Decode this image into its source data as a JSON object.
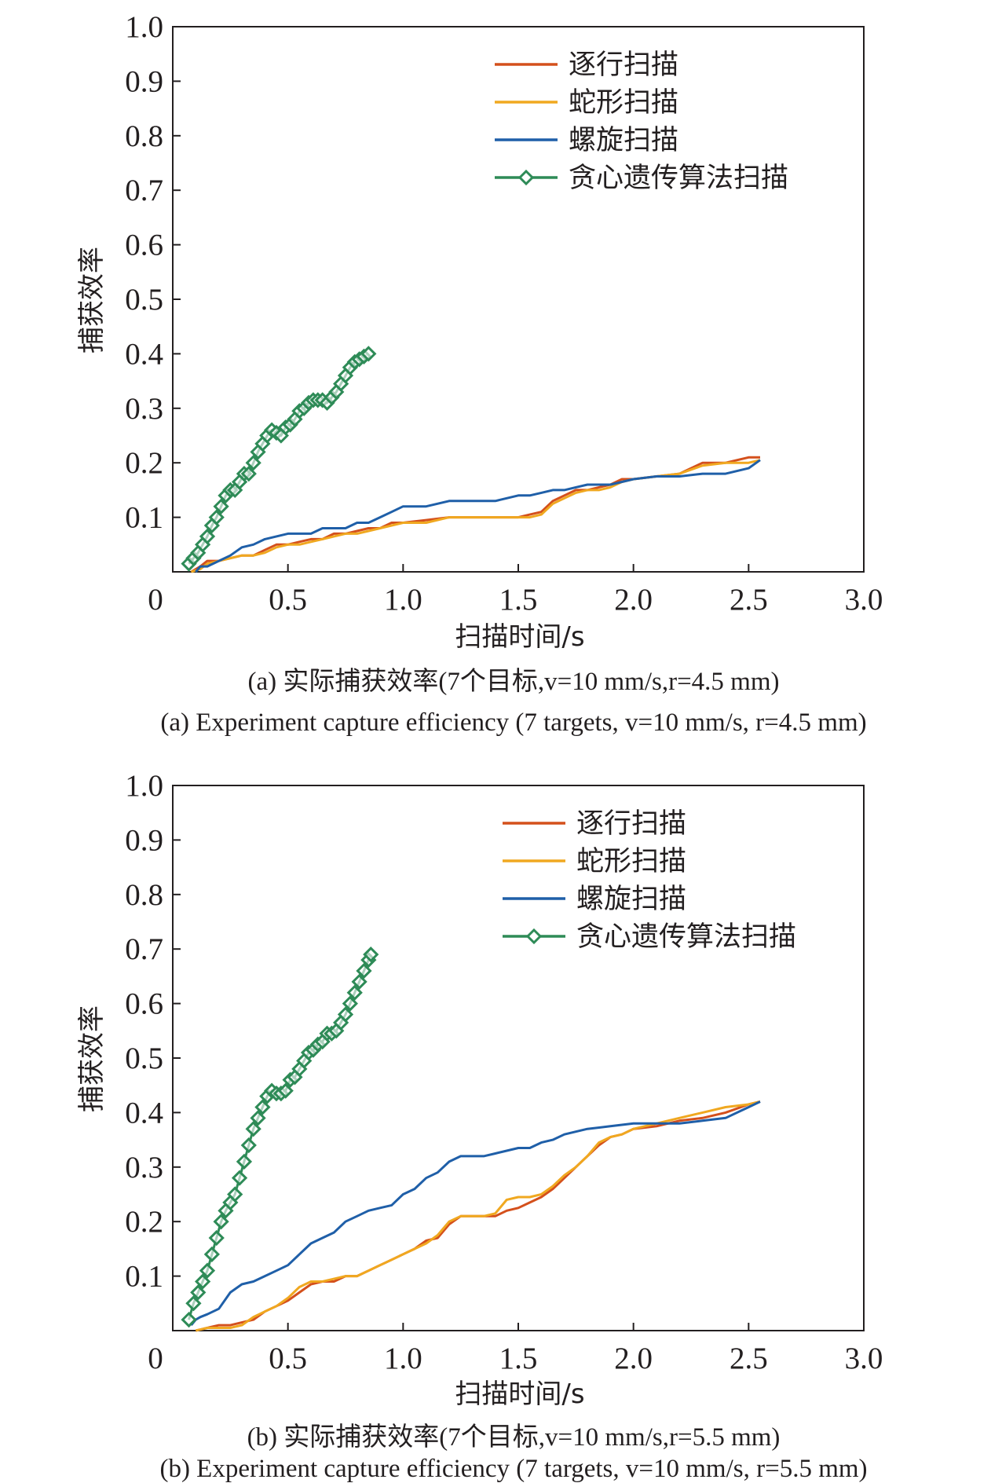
{
  "charts": [
    {
      "caption_cn": "(a) 实际捕获效率(7个目标,v=10 mm/s,r=4.5 mm)",
      "caption_en": "(a) Experiment capture efficiency (7 targets, v=10 mm/s, r=4.5 mm)"
    },
    {
      "caption_cn": "(b) 实际捕获效率(7个目标,v=10 mm/s,r=5.5 mm)",
      "caption_en": "(b) Experiment capture efficiency (7 targets, v=10 mm/s, r=5.5 mm)"
    }
  ],
  "chart_data": [
    {
      "type": "line",
      "xlabel": "扫描时间/s",
      "ylabel": "捕获效率",
      "xlim": [
        0,
        3.0
      ],
      "ylim": [
        0,
        1.0
      ],
      "xticks": [
        "0",
        "0.5",
        "1.0",
        "1.5",
        "2.0",
        "2.5",
        "3.0"
      ],
      "yticks": [
        "0.1",
        "0.2",
        "0.3",
        "0.4",
        "0.5",
        "0.6",
        "0.7",
        "0.8",
        "0.9",
        "1.0"
      ],
      "grid": false,
      "legend_position": "top-right",
      "series": [
        {
          "name": "逐行扫描",
          "color": "#d4501c",
          "marker": "none",
          "x": [
            0.08,
            0.12,
            0.15,
            0.2,
            0.3,
            0.35,
            0.4,
            0.45,
            0.5,
            0.55,
            0.6,
            0.65,
            0.7,
            0.75,
            0.8,
            0.85,
            0.9,
            0.95,
            1.0,
            1.1,
            1.2,
            1.3,
            1.4,
            1.5,
            1.55,
            1.6,
            1.65,
            1.7,
            1.75,
            1.8,
            1.85,
            1.9,
            1.95,
            2.0,
            2.1,
            2.2,
            2.3,
            2.4,
            2.5,
            2.55
          ],
          "y": [
            0.0,
            0.01,
            0.02,
            0.02,
            0.03,
            0.03,
            0.04,
            0.05,
            0.05,
            0.055,
            0.06,
            0.06,
            0.07,
            0.07,
            0.075,
            0.08,
            0.08,
            0.09,
            0.09,
            0.095,
            0.1,
            0.1,
            0.1,
            0.1,
            0.105,
            0.11,
            0.13,
            0.14,
            0.15,
            0.15,
            0.155,
            0.16,
            0.17,
            0.17,
            0.175,
            0.18,
            0.2,
            0.2,
            0.21,
            0.21
          ]
        },
        {
          "name": "蛇形扫描",
          "color": "#f0a820",
          "marker": "none",
          "x": [
            0.08,
            0.12,
            0.15,
            0.2,
            0.3,
            0.35,
            0.4,
            0.45,
            0.5,
            0.55,
            0.6,
            0.65,
            0.7,
            0.75,
            0.8,
            0.85,
            0.9,
            0.95,
            1.0,
            1.1,
            1.2,
            1.3,
            1.4,
            1.5,
            1.55,
            1.6,
            1.65,
            1.7,
            1.75,
            1.8,
            1.85,
            1.9,
            1.95,
            2.0,
            2.1,
            2.2,
            2.3,
            2.4,
            2.5,
            2.55
          ],
          "y": [
            0.0,
            0.005,
            0.015,
            0.02,
            0.03,
            0.03,
            0.035,
            0.045,
            0.05,
            0.05,
            0.055,
            0.06,
            0.065,
            0.07,
            0.07,
            0.075,
            0.08,
            0.085,
            0.09,
            0.09,
            0.1,
            0.1,
            0.1,
            0.1,
            0.1,
            0.105,
            0.125,
            0.135,
            0.145,
            0.15,
            0.15,
            0.155,
            0.165,
            0.17,
            0.175,
            0.18,
            0.195,
            0.2,
            0.2,
            0.205
          ]
        },
        {
          "name": "螺旋扫描",
          "color": "#1f5fa8",
          "marker": "none",
          "x": [
            0.1,
            0.12,
            0.15,
            0.2,
            0.25,
            0.3,
            0.35,
            0.4,
            0.45,
            0.5,
            0.55,
            0.6,
            0.65,
            0.7,
            0.75,
            0.8,
            0.85,
            0.9,
            0.95,
            1.0,
            1.1,
            1.2,
            1.3,
            1.4,
            1.45,
            1.5,
            1.55,
            1.6,
            1.65,
            1.7,
            1.75,
            1.8,
            1.85,
            1.9,
            1.95,
            2.0,
            2.1,
            2.2,
            2.3,
            2.4,
            2.5,
            2.55
          ],
          "y": [
            0.0,
            0.01,
            0.01,
            0.02,
            0.03,
            0.045,
            0.05,
            0.06,
            0.065,
            0.07,
            0.07,
            0.07,
            0.08,
            0.08,
            0.08,
            0.09,
            0.09,
            0.1,
            0.11,
            0.12,
            0.12,
            0.13,
            0.13,
            0.13,
            0.135,
            0.14,
            0.14,
            0.145,
            0.15,
            0.15,
            0.155,
            0.16,
            0.16,
            0.16,
            0.165,
            0.17,
            0.175,
            0.175,
            0.18,
            0.18,
            0.19,
            0.205
          ]
        },
        {
          "name": "贪心遗传算法扫描",
          "color": "#2e8b57",
          "marker": "diamond",
          "x": [
            0.07,
            0.09,
            0.11,
            0.13,
            0.15,
            0.17,
            0.19,
            0.21,
            0.23,
            0.25,
            0.27,
            0.29,
            0.31,
            0.33,
            0.35,
            0.37,
            0.39,
            0.41,
            0.43,
            0.45,
            0.47,
            0.49,
            0.51,
            0.53,
            0.55,
            0.57,
            0.59,
            0.61,
            0.63,
            0.65,
            0.67,
            0.69,
            0.71,
            0.73,
            0.75,
            0.77,
            0.79,
            0.81,
            0.83,
            0.85
          ],
          "y": [
            0.015,
            0.025,
            0.035,
            0.05,
            0.065,
            0.085,
            0.1,
            0.12,
            0.14,
            0.15,
            0.15,
            0.165,
            0.18,
            0.18,
            0.2,
            0.22,
            0.235,
            0.25,
            0.26,
            0.255,
            0.25,
            0.265,
            0.27,
            0.28,
            0.295,
            0.3,
            0.31,
            0.315,
            0.315,
            0.315,
            0.31,
            0.32,
            0.33,
            0.345,
            0.36,
            0.375,
            0.385,
            0.39,
            0.395,
            0.4
          ]
        }
      ]
    },
    {
      "type": "line",
      "xlabel": "扫描时间/s",
      "ylabel": "捕获效率",
      "xlim": [
        0,
        3.0
      ],
      "ylim": [
        0,
        1.0
      ],
      "xticks": [
        "0",
        "0.5",
        "1.0",
        "1.5",
        "2.0",
        "2.5",
        "3.0"
      ],
      "yticks": [
        "0.1",
        "0.2",
        "0.3",
        "0.4",
        "0.5",
        "0.6",
        "0.7",
        "0.8",
        "0.9",
        "1.0"
      ],
      "grid": false,
      "legend_position": "top-right",
      "series": [
        {
          "name": "逐行扫描",
          "color": "#d4501c",
          "marker": "none",
          "x": [
            0.1,
            0.15,
            0.2,
            0.25,
            0.3,
            0.35,
            0.4,
            0.45,
            0.5,
            0.55,
            0.6,
            0.65,
            0.7,
            0.75,
            0.8,
            0.85,
            0.9,
            0.95,
            1.0,
            1.05,
            1.1,
            1.15,
            1.2,
            1.25,
            1.3,
            1.35,
            1.4,
            1.45,
            1.5,
            1.55,
            1.6,
            1.65,
            1.7,
            1.75,
            1.8,
            1.85,
            1.9,
            1.95,
            2.0,
            2.1,
            2.2,
            2.3,
            2.4,
            2.5,
            2.55
          ],
          "y": [
            0.0,
            0.005,
            0.01,
            0.01,
            0.015,
            0.02,
            0.035,
            0.045,
            0.055,
            0.07,
            0.085,
            0.09,
            0.09,
            0.1,
            0.1,
            0.11,
            0.12,
            0.13,
            0.14,
            0.15,
            0.165,
            0.17,
            0.195,
            0.21,
            0.21,
            0.21,
            0.21,
            0.22,
            0.225,
            0.235,
            0.245,
            0.26,
            0.28,
            0.3,
            0.32,
            0.34,
            0.355,
            0.36,
            0.37,
            0.375,
            0.385,
            0.39,
            0.4,
            0.415,
            0.42
          ]
        },
        {
          "name": "蛇形扫描",
          "color": "#f0a820",
          "marker": "none",
          "x": [
            0.1,
            0.15,
            0.2,
            0.25,
            0.3,
            0.35,
            0.4,
            0.45,
            0.5,
            0.55,
            0.6,
            0.65,
            0.7,
            0.75,
            0.8,
            0.85,
            0.9,
            0.95,
            1.0,
            1.05,
            1.1,
            1.15,
            1.2,
            1.25,
            1.3,
            1.35,
            1.4,
            1.45,
            1.5,
            1.55,
            1.6,
            1.65,
            1.7,
            1.75,
            1.8,
            1.85,
            1.9,
            1.95,
            2.0,
            2.1,
            2.2,
            2.3,
            2.4,
            2.5,
            2.55
          ],
          "y": [
            0.0,
            0.005,
            0.005,
            0.005,
            0.01,
            0.025,
            0.035,
            0.045,
            0.06,
            0.08,
            0.09,
            0.09,
            0.095,
            0.1,
            0.1,
            0.11,
            0.12,
            0.13,
            0.14,
            0.15,
            0.16,
            0.175,
            0.2,
            0.21,
            0.21,
            0.21,
            0.215,
            0.24,
            0.245,
            0.245,
            0.25,
            0.265,
            0.285,
            0.3,
            0.32,
            0.345,
            0.355,
            0.36,
            0.37,
            0.38,
            0.39,
            0.4,
            0.41,
            0.415,
            0.42
          ]
        },
        {
          "name": "螺旋扫描",
          "color": "#1f5fa8",
          "marker": "none",
          "x": [
            0.08,
            0.1,
            0.12,
            0.15,
            0.2,
            0.25,
            0.3,
            0.35,
            0.4,
            0.45,
            0.5,
            0.55,
            0.6,
            0.65,
            0.7,
            0.75,
            0.8,
            0.85,
            0.9,
            0.95,
            1.0,
            1.05,
            1.1,
            1.15,
            1.2,
            1.25,
            1.3,
            1.35,
            1.4,
            1.45,
            1.5,
            1.55,
            1.6,
            1.65,
            1.7,
            1.75,
            1.8,
            1.9,
            2.0,
            2.1,
            2.2,
            2.3,
            2.4,
            2.5,
            2.55
          ],
          "y": [
            0.01,
            0.02,
            0.025,
            0.03,
            0.04,
            0.07,
            0.085,
            0.09,
            0.1,
            0.11,
            0.12,
            0.14,
            0.16,
            0.17,
            0.18,
            0.2,
            0.21,
            0.22,
            0.225,
            0.23,
            0.25,
            0.26,
            0.28,
            0.29,
            0.31,
            0.32,
            0.32,
            0.32,
            0.325,
            0.33,
            0.335,
            0.335,
            0.345,
            0.35,
            0.36,
            0.365,
            0.37,
            0.375,
            0.38,
            0.38,
            0.38,
            0.385,
            0.39,
            0.41,
            0.42
          ]
        },
        {
          "name": "贪心遗传算法扫描",
          "color": "#2e8b57",
          "marker": "diamond",
          "x": [
            0.07,
            0.09,
            0.11,
            0.13,
            0.15,
            0.17,
            0.19,
            0.21,
            0.23,
            0.25,
            0.27,
            0.29,
            0.31,
            0.33,
            0.35,
            0.37,
            0.39,
            0.41,
            0.43,
            0.45,
            0.47,
            0.49,
            0.51,
            0.53,
            0.55,
            0.57,
            0.59,
            0.61,
            0.63,
            0.65,
            0.67,
            0.69,
            0.71,
            0.73,
            0.75,
            0.77,
            0.79,
            0.81,
            0.83,
            0.85,
            0.86
          ],
          "y": [
            0.02,
            0.05,
            0.07,
            0.09,
            0.11,
            0.14,
            0.17,
            0.2,
            0.22,
            0.235,
            0.25,
            0.28,
            0.31,
            0.34,
            0.37,
            0.39,
            0.41,
            0.43,
            0.44,
            0.435,
            0.435,
            0.44,
            0.46,
            0.465,
            0.48,
            0.495,
            0.51,
            0.515,
            0.525,
            0.53,
            0.545,
            0.545,
            0.55,
            0.565,
            0.58,
            0.6,
            0.62,
            0.64,
            0.66,
            0.68,
            0.69
          ]
        }
      ]
    }
  ]
}
